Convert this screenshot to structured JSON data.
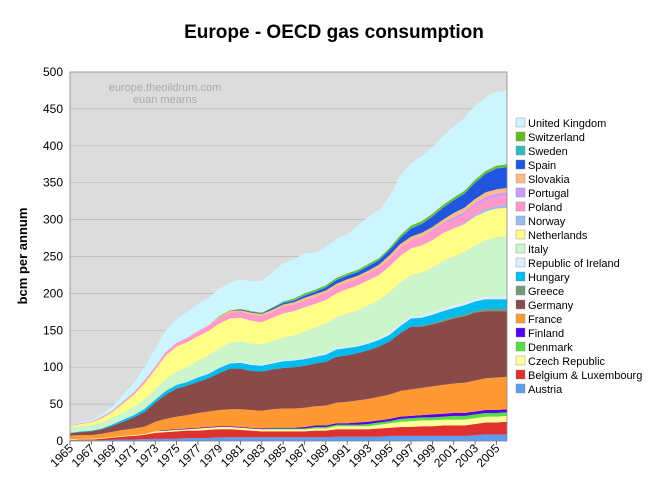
{
  "chart_data": {
    "type": "area",
    "stacked": true,
    "title": "Europe - OECD gas consumption",
    "ylabel": "bcm per annum",
    "xlabel": "",
    "ylim": [
      0,
      500
    ],
    "yticks": [
      0,
      50,
      100,
      150,
      200,
      250,
      300,
      350,
      400,
      450,
      500
    ],
    "xtick_labels": [
      "1965",
      "1967",
      "1969",
      "1971",
      "1973",
      "1975",
      "1977",
      "1979",
      "1981",
      "1983",
      "1985",
      "1987",
      "1989",
      "1991",
      "1993",
      "1995",
      "1997",
      "1999",
      "2001",
      "2003",
      "2005"
    ],
    "watermark": [
      "europe.theoildrum.com",
      "euan mearns"
    ],
    "grid": "horizontal",
    "legend_position": "right",
    "x": [
      1965,
      1966,
      1967,
      1968,
      1969,
      1970,
      1971,
      1972,
      1973,
      1974,
      1975,
      1976,
      1977,
      1978,
      1979,
      1980,
      1981,
      1982,
      1983,
      1984,
      1985,
      1986,
      1987,
      1988,
      1989,
      1990,
      1991,
      1992,
      1993,
      1994,
      1995,
      1996,
      1997,
      1998,
      1999,
      2000,
      2001,
      2002,
      2003,
      2004,
      2005,
      2006
    ],
    "series": [
      {
        "name": "Austria",
        "color": "#5c9ded",
        "values": [
          1,
          1,
          1,
          1,
          1.5,
          2,
          2,
          2.5,
          3,
          3,
          3,
          4,
          4,
          4,
          5,
          5,
          5,
          5,
          5,
          5,
          5,
          5,
          5,
          5,
          5,
          6,
          6,
          6,
          6,
          6,
          7,
          7,
          7,
          7,
          7,
          7,
          7,
          7,
          8,
          9,
          9,
          9
        ]
      },
      {
        "name": "Belgium & Luxembourg",
        "color": "#e03030",
        "values": [
          0.5,
          1,
          1,
          2,
          3,
          4,
          5,
          6,
          8,
          9,
          10,
          10,
          10,
          11,
          11,
          11,
          10,
          9,
          8,
          8,
          8,
          8,
          8,
          9,
          9,
          10,
          10,
          10,
          10,
          11,
          11,
          12,
          12,
          13,
          13,
          14,
          14,
          14,
          15,
          16,
          16,
          17
        ]
      },
      {
        "name": "Czech Republic",
        "color": "#ffff99",
        "values": [
          1,
          1,
          1,
          1,
          1,
          1,
          1,
          1,
          2,
          2,
          2,
          2,
          3,
          3,
          3,
          3,
          3,
          3,
          3,
          3,
          3,
          3,
          3,
          3,
          3,
          4,
          4,
          4,
          4,
          5,
          6,
          7,
          8,
          8,
          8,
          8,
          8,
          8,
          8,
          8,
          8,
          8
        ]
      },
      {
        "name": "Denmark",
        "color": "#55dd44",
        "values": [
          0,
          0,
          0,
          0,
          0,
          0,
          0,
          0,
          0,
          0,
          0,
          0,
          0,
          0,
          0,
          0,
          0,
          0,
          0,
          1,
          1,
          1,
          1,
          2,
          2,
          2,
          2,
          2,
          3,
          3,
          3,
          4,
          4,
          4,
          4,
          4,
          5,
          5,
          5,
          5,
          5,
          5
        ]
      },
      {
        "name": "Finland",
        "color": "#5500ee",
        "values": [
          0,
          0,
          0,
          0,
          0,
          0,
          0,
          0,
          0,
          1,
          1,
          1,
          1,
          1,
          1,
          1,
          1,
          1,
          1,
          1,
          1,
          1,
          2,
          2,
          2,
          2,
          2,
          3,
          3,
          3,
          3,
          3,
          3,
          3,
          4,
          4,
          4,
          4,
          4,
          4,
          4,
          4
        ]
      },
      {
        "name": "France",
        "color": "#ff9933",
        "values": [
          5,
          5,
          5,
          6,
          7,
          8,
          9,
          10,
          13,
          15,
          17,
          18,
          20,
          21,
          22,
          23,
          24,
          24,
          24,
          25,
          26,
          26,
          26,
          26,
          27,
          28,
          29,
          30,
          31,
          32,
          33,
          35,
          36,
          37,
          38,
          39,
          40,
          41,
          42,
          43,
          44,
          44
        ]
      },
      {
        "name": "Germany",
        "color": "#8b4a4a",
        "values": [
          3,
          4,
          5,
          6,
          8,
          11,
          15,
          20,
          26,
          33,
          38,
          40,
          42,
          45,
          50,
          55,
          55,
          53,
          53,
          54,
          55,
          56,
          57,
          58,
          59,
          62,
          63,
          64,
          66,
          68,
          72,
          78,
          85,
          83,
          84,
          86,
          88,
          90,
          92,
          91,
          90,
          89
        ]
      },
      {
        "name": "Greece",
        "color": "#779977",
        "values": [
          0,
          0,
          0,
          0,
          0,
          0,
          0,
          0,
          0,
          0,
          0,
          0,
          0,
          0,
          0,
          0,
          0,
          0,
          0,
          0,
          0,
          0,
          0,
          0,
          0,
          0,
          0,
          0,
          0,
          0,
          0,
          0,
          0,
          1,
          1,
          2,
          2,
          2,
          2,
          3,
          3,
          3
        ]
      },
      {
        "name": "Hungary",
        "color": "#00bbee",
        "values": [
          0.5,
          1,
          1,
          1,
          2,
          3,
          3,
          4,
          4,
          5,
          5,
          5,
          6,
          6,
          7,
          7,
          8,
          8,
          8,
          8,
          9,
          9,
          9,
          9,
          10,
          10,
          10,
          9,
          9,
          9,
          9,
          10,
          11,
          11,
          12,
          12,
          12,
          13,
          13,
          13,
          13,
          13
        ]
      },
      {
        "name": "Republic of Ireland",
        "color": "#ddeeff",
        "values": [
          0,
          0,
          0,
          0,
          0,
          0,
          0,
          0,
          0,
          0,
          0,
          0,
          1,
          1,
          1,
          1,
          2,
          2,
          2,
          2,
          2,
          2,
          2,
          2,
          2,
          2,
          2,
          2,
          2,
          2,
          3,
          3,
          3,
          3,
          4,
          4,
          4,
          4,
          4,
          4,
          4,
          4
        ]
      },
      {
        "name": "Italy",
        "color": "#ccf5cc",
        "values": [
          7,
          7,
          7,
          8,
          9,
          10,
          11,
          13,
          14,
          16,
          18,
          20,
          22,
          24,
          26,
          27,
          27,
          27,
          27,
          28,
          30,
          32,
          35,
          38,
          40,
          42,
          45,
          47,
          50,
          52,
          55,
          56,
          56,
          58,
          60,
          64,
          66,
          68,
          72,
          76,
          80,
          82
        ]
      },
      {
        "name": "Netherlands",
        "color": "#ffff88",
        "values": [
          2,
          3,
          4,
          6,
          8,
          12,
          17,
          22,
          27,
          32,
          34,
          34,
          33,
          33,
          33,
          33,
          32,
          31,
          30,
          32,
          33,
          33,
          33,
          32,
          32,
          32,
          33,
          34,
          34,
          34,
          35,
          36,
          36,
          37,
          37,
          38,
          38,
          38,
          39,
          39,
          39,
          38
        ]
      },
      {
        "name": "Norway",
        "color": "#99bbee",
        "values": [
          0,
          0,
          0,
          0,
          0,
          0,
          0,
          0,
          0,
          0,
          0,
          0,
          0,
          0,
          0,
          0,
          0,
          0,
          0,
          0,
          0,
          0,
          0,
          0,
          0,
          0,
          0,
          0,
          0,
          0,
          0,
          0,
          0,
          0,
          0,
          0,
          0,
          1,
          2,
          3,
          3,
          4
        ]
      },
      {
        "name": "Poland",
        "color": "#ff99cc",
        "values": [
          1,
          1,
          1,
          2,
          2,
          3,
          3,
          4,
          4,
          5,
          5,
          6,
          6,
          7,
          7,
          8,
          8,
          8,
          8,
          8,
          9,
          9,
          9,
          9,
          9,
          9,
          9,
          9,
          9,
          10,
          10,
          11,
          11,
          11,
          11,
          11,
          12,
          12,
          13,
          13,
          13,
          13
        ]
      },
      {
        "name": "Portugal",
        "color": "#cc99ff",
        "values": [
          0,
          0,
          0,
          0,
          0,
          0,
          0,
          0,
          0,
          0,
          0,
          0,
          0,
          0,
          0,
          0,
          0,
          0,
          0,
          0,
          0,
          0,
          0,
          0,
          0,
          0,
          0,
          0,
          0,
          0,
          0,
          0,
          0,
          1,
          2,
          2,
          3,
          3,
          3,
          4,
          4,
          4
        ]
      },
      {
        "name": "Slovakia",
        "color": "#ffbb88",
        "values": [
          0,
          0,
          0,
          0,
          0,
          0,
          0,
          0,
          0,
          0,
          0,
          0,
          1,
          1,
          2,
          2,
          2,
          3,
          3,
          3,
          3,
          3,
          4,
          4,
          4,
          4,
          4,
          4,
          4,
          4,
          5,
          5,
          5,
          5,
          5,
          5,
          6,
          6,
          6,
          6,
          6,
          6
        ]
      },
      {
        "name": "Spain",
        "color": "#2255dd",
        "values": [
          0,
          0,
          0,
          0,
          0,
          0,
          0,
          0,
          0,
          0,
          0,
          0,
          0,
          0,
          0,
          0,
          1,
          1,
          1,
          2,
          2,
          2,
          3,
          3,
          4,
          5,
          5,
          5,
          6,
          6,
          7,
          8,
          11,
          12,
          14,
          16,
          17,
          19,
          22,
          25,
          28,
          28
        ]
      },
      {
        "name": "Sweden",
        "color": "#33bbbb",
        "values": [
          0,
          0,
          0,
          0,
          0,
          0,
          0,
          0,
          0,
          0,
          0,
          0,
          0,
          0,
          0,
          0,
          0,
          0,
          0,
          0,
          1,
          1,
          1,
          1,
          1,
          1,
          1,
          1,
          1,
          1,
          1,
          1,
          1,
          1,
          1,
          1,
          1,
          1,
          1,
          1,
          1,
          1
        ]
      },
      {
        "name": "Switzerland",
        "color": "#66bb22",
        "values": [
          0,
          0,
          0,
          0,
          0,
          0,
          0,
          0,
          0,
          0,
          0,
          0,
          0,
          0,
          1,
          1,
          1,
          1,
          1,
          1,
          1,
          2,
          2,
          2,
          2,
          2,
          2,
          2,
          2,
          2,
          2,
          3,
          3,
          3,
          3,
          3,
          3,
          3,
          3,
          3,
          3,
          3
        ]
      },
      {
        "name": "United Kingdom",
        "color": "#ccf5ff",
        "values": [
          1,
          1,
          2,
          4,
          6,
          9,
          13,
          18,
          24,
          29,
          32,
          35,
          37,
          37,
          37,
          38,
          40,
          40,
          43,
          47,
          52,
          53,
          54,
          50,
          52,
          53,
          53,
          60,
          64,
          65,
          70,
          81,
          85,
          88,
          90,
          93,
          96,
          99,
          100,
          100,
          100,
          100
        ]
      }
    ]
  }
}
